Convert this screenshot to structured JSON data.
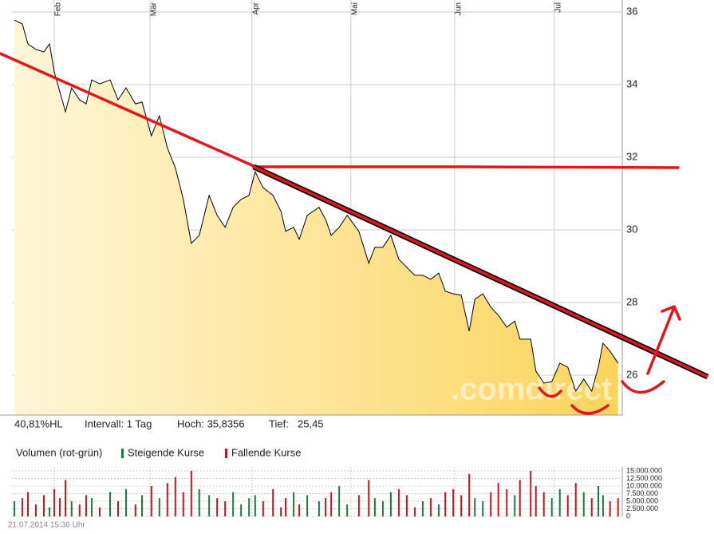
{
  "chart_data": [
    {
      "type": "line",
      "color": "#000000",
      "fill_from": "#fff6d8",
      "fill_to": "#fbd45a",
      "watermark": ".comdirect",
      "x": [
        0.5,
        2.2,
        3.4,
        5.1,
        6.8,
        8,
        9,
        10.2,
        11.4,
        12.7,
        14.4,
        15.8,
        17,
        18.7,
        20.9,
        22.6,
        24.3,
        26.3,
        27.7,
        29.7,
        31.4,
        33.1,
        34.8,
        36.5,
        38.2,
        39.9,
        42,
        43.7,
        45.4,
        47.1,
        48.8,
        50.5,
        51.8,
        53.5,
        55.6,
        57.3,
        58.3,
        60,
        61.2,
        62.9,
        65.4,
        66.8,
        68,
        69.7,
        71.4,
        73.9,
        76,
        77.3,
        79,
        80.7,
        82.4,
        84.1,
        85.8,
        87.5,
        89.2,
        90.9,
        92.3,
        94,
        95.7,
        97.4,
        98.6,
        100.3,
        102,
        103.6,
        105.4,
        107.1,
        108.2,
        110.5,
        111.6,
        113.3,
        115,
        116.7,
        118.4,
        120.1,
        121.8,
        123.5,
        124.9,
        125.9,
        127.4,
        129.1
      ],
      "values": [
        35.78,
        35.67,
        35.12,
        34.97,
        34.9,
        35.12,
        34.35,
        33.8,
        33.25,
        33.91,
        33.58,
        33.47,
        34.13,
        34.02,
        34.13,
        33.58,
        33.91,
        33.47,
        33.52,
        32.59,
        33.14,
        32.26,
        31.71,
        30.84,
        29.63,
        29.85,
        30.95,
        30.4,
        30.07,
        30.62,
        30.84,
        30.95,
        31.6,
        31.16,
        30.95,
        30.51,
        29.96,
        30.07,
        29.74,
        30.4,
        30.62,
        30.29,
        29.85,
        30.07,
        30.4,
        29.96,
        29.08,
        29.52,
        29.52,
        29.85,
        29.19,
        28.97,
        28.75,
        28.75,
        28.64,
        28.81,
        28.31,
        28.24,
        28.2,
        27.21,
        28.09,
        28.24,
        27.87,
        27.65,
        27.32,
        27.49,
        26.99,
        26.99,
        26.11,
        25.78,
        25.82,
        26.33,
        26.22,
        25.56,
        25.89,
        25.56,
        26.22,
        26.88,
        26.66,
        26.33
      ],
      "xlim": [
        0,
        130
      ],
      "xticks": [
        {
          "value": 9,
          "label": "Feb"
        },
        {
          "value": 29.4,
          "label": "Mär"
        },
        {
          "value": 51.1,
          "label": "Apr"
        },
        {
          "value": 72.2,
          "label": "Mai"
        },
        {
          "value": 94.3,
          "label": "Jun"
        },
        {
          "value": 115.5,
          "label": "Jul"
        }
      ],
      "ylim": [
        24.9,
        36.33
      ],
      "yticks": [
        26,
        28,
        30,
        32,
        34,
        36
      ],
      "grid": true,
      "info": [
        "40,81%HL",
        "Intervall: 1 Tag",
        "Hoch: 35,8356",
        "Tief:",
        "25,45"
      ]
    },
    {
      "type": "bar",
      "title": "Volumen (rot-grün)",
      "x": [
        0.5,
        2.2,
        3.4,
        5.1,
        6.8,
        8,
        9,
        10.2,
        11.4,
        12.7,
        14.4,
        15.8,
        17,
        18.7,
        20.9,
        22.6,
        24.3,
        26.3,
        27.7,
        29.7,
        31.4,
        33.1,
        34.8,
        36.5,
        38.2,
        39.9,
        42,
        43.7,
        45.4,
        47.1,
        48.8,
        50.5,
        51.8,
        53.5,
        55.6,
        57.3,
        58.3,
        60,
        61.2,
        62.9,
        65.4,
        66.8,
        68,
        69.7,
        71.4,
        73.9,
        76,
        77.3,
        79,
        80.7,
        82.4,
        84.1,
        85.8,
        87.5,
        89.2,
        90.9,
        92.3,
        94,
        95.7,
        97.4,
        98.6,
        100.3,
        102,
        103.6,
        105.4,
        107.1,
        108.2,
        110.5,
        111.6,
        113.3,
        115,
        116.7,
        118.4,
        120.1,
        121.8,
        123.5,
        124.9,
        125.9,
        127.4,
        129.1
      ],
      "series": [
        {
          "name": "Steigende Kurse",
          "color": "#1e7a3c",
          "values": [
            5000000,
            null,
            null,
            null,
            null,
            3000000,
            null,
            null,
            null,
            5000000,
            null,
            null,
            6000000,
            null,
            8000000,
            null,
            9000000,
            null,
            7000000,
            null,
            6000000,
            null,
            null,
            null,
            null,
            9000000,
            7000000,
            null,
            null,
            8000000,
            4000000,
            6000000,
            7000000,
            null,
            null,
            null,
            null,
            8000000,
            null,
            7000000,
            5000000,
            null,
            null,
            10000000,
            4000000,
            null,
            null,
            6000000,
            5000000,
            8000000,
            null,
            null,
            null,
            5000000,
            null,
            4000000,
            null,
            null,
            null,
            null,
            6000000,
            5000000,
            null,
            null,
            null,
            7000000,
            null,
            null,
            null,
            null,
            6000000,
            9000000,
            null,
            null,
            8000000,
            null,
            10000000,
            7000000,
            null,
            null
          ]
        },
        {
          "name": "Fallende Kurse",
          "color": "#c8141e",
          "values": [
            null,
            6000000,
            8000000,
            4000000,
            7000000,
            null,
            9000000,
            6000000,
            12000000,
            null,
            4000000,
            7000000,
            null,
            3000000,
            null,
            5000000,
            null,
            4000000,
            null,
            10000000,
            null,
            11000000,
            13000000,
            8000000,
            15000000,
            null,
            null,
            6000000,
            5000000,
            null,
            null,
            null,
            null,
            5000000,
            9000000,
            3000000,
            6000000,
            null,
            4000000,
            null,
            null,
            6000000,
            8000000,
            null,
            null,
            7000000,
            12000000,
            null,
            null,
            null,
            9000000,
            7000000,
            3000000,
            null,
            6000000,
            null,
            8000000,
            9000000,
            7000000,
            14000000,
            null,
            null,
            8000000,
            11000000,
            9000000,
            null,
            12000000,
            15000000,
            10000000,
            8000000,
            null,
            null,
            7000000,
            11000000,
            null,
            6000000,
            null,
            null,
            5000000,
            6000000
          ]
        }
      ],
      "xlim": [
        0,
        130
      ],
      "ylim": [
        0,
        16300000
      ],
      "yticks": [
        {
          "value": 15000000,
          "label": "15.000.000"
        },
        {
          "value": 12500000,
          "label": "12.500.000"
        },
        {
          "value": 10000000,
          "label": "10.000.000"
        },
        {
          "value": 7500000,
          "label": "7.500.000"
        },
        {
          "value": 5000000,
          "label": "5.000.000"
        },
        {
          "value": 2500000,
          "label": "2.500.000"
        },
        0
      ],
      "grid": true
    }
  ],
  "footer": "21.07.2014 15:36 Uhr"
}
